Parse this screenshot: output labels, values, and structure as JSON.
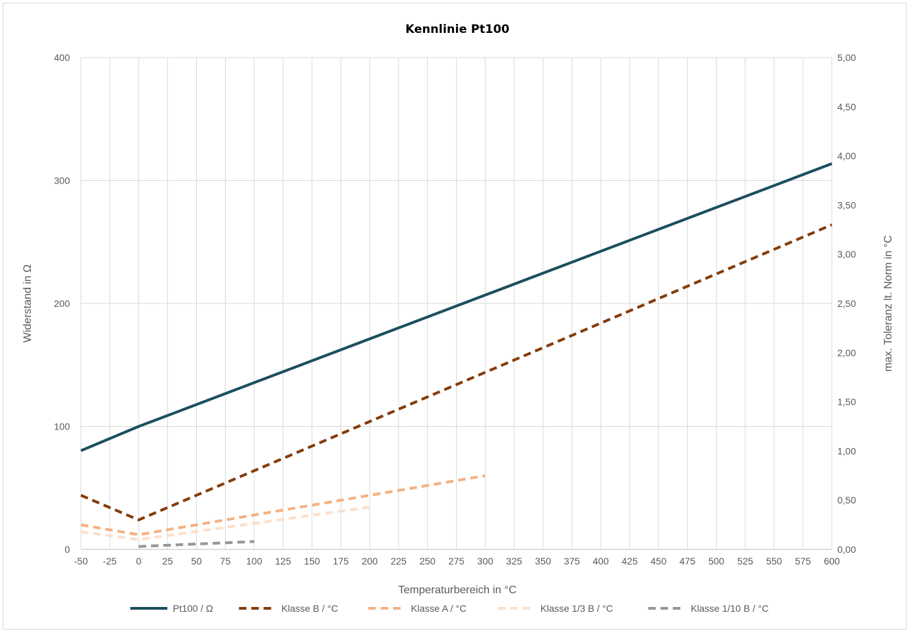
{
  "chart_data": {
    "type": "line",
    "title": "Kennlinie Pt100",
    "xlabel": "Temperaturbereich in °C",
    "ylabel": "Widerstand in Ω",
    "y2label": "max. Toleranz lt. Norm in °C",
    "x_ticks": [
      "-50",
      "-25",
      "0",
      "25",
      "50",
      "75",
      "100",
      "125",
      "150",
      "175",
      "200",
      "225",
      "250",
      "275",
      "300",
      "325",
      "350",
      "375",
      "400",
      "425",
      "450",
      "475",
      "500",
      "525",
      "550",
      "575",
      "600"
    ],
    "xlim": [
      -50,
      600
    ],
    "ylim": [
      0,
      400
    ],
    "y_ticks": [
      "0",
      "100",
      "200",
      "300",
      "400"
    ],
    "y2lim": [
      0,
      5
    ],
    "y2_ticks": [
      "0,00",
      "0,50",
      "1,00",
      "1,50",
      "2,00",
      "2,50",
      "3,00",
      "3,50",
      "4,00",
      "4,50",
      "5,00"
    ],
    "grid": "vertical and horizontal",
    "legend_position": "bottom",
    "series": [
      {
        "name": "Pt100 / Ω",
        "axis": "left",
        "style": "solid",
        "color": "#1b4f5e",
        "x": [
          -50,
          0,
          600
        ],
        "values": [
          80.31,
          100.0,
          313.71
        ]
      },
      {
        "name": "Klasse B / °C",
        "axis": "right",
        "style": "dashed",
        "color": "#843c0c",
        "x": [
          -50,
          0,
          600
        ],
        "values": [
          0.55,
          0.3,
          3.3
        ]
      },
      {
        "name": "Klasse A / °C",
        "axis": "right",
        "style": "dashed",
        "color": "#f4b183",
        "x": [
          -50,
          0,
          300
        ],
        "values": [
          0.25,
          0.15,
          0.75
        ]
      },
      {
        "name": "Klasse 1/3 B / °C",
        "axis": "right",
        "style": "dashed",
        "color": "#fbe0cc",
        "x": [
          -50,
          0,
          200
        ],
        "values": [
          0.18,
          0.1,
          0.43
        ]
      },
      {
        "name": "Klasse 1/10 B / °C",
        "axis": "right",
        "style": "dashed",
        "color": "#969696",
        "x": [
          0,
          100
        ],
        "values": [
          0.03,
          0.08
        ]
      }
    ]
  }
}
